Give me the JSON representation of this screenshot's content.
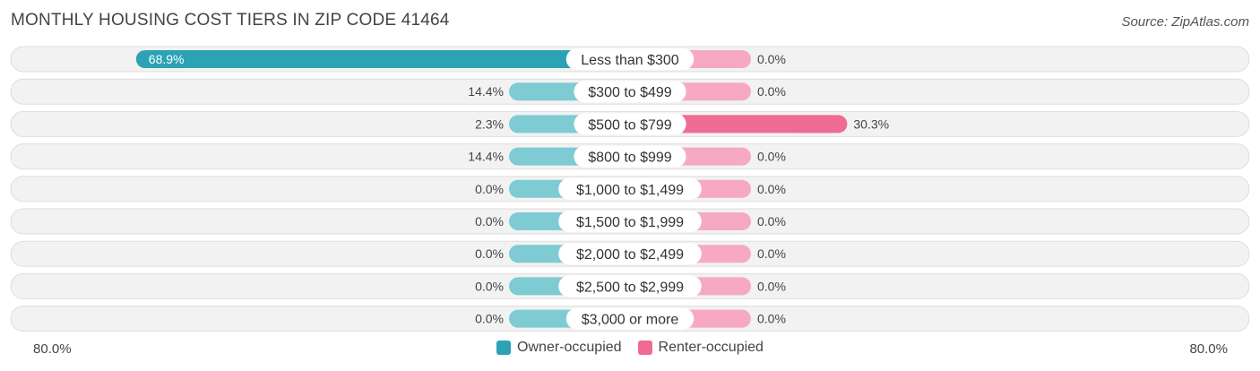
{
  "header": {
    "title": "MONTHLY HOUSING COST TIERS IN ZIP CODE 41464",
    "source": "Source: ZipAtlas.com"
  },
  "colors": {
    "owner_strong": "#2ba3b4",
    "owner_light": "#7ecbd3",
    "renter_strong": "#f06b93",
    "renter_light": "#f7a9c2",
    "row_bg": "#f2f2f2",
    "row_border": "#dedede"
  },
  "axis": {
    "left_label": "80.0%",
    "right_label": "80.0%"
  },
  "legend": {
    "owner": "Owner-occupied",
    "renter": "Renter-occupied"
  },
  "chart_data": {
    "type": "bar",
    "orientation": "horizontal-diverging",
    "xlim": [
      -80,
      80
    ],
    "categories": [
      "Less than $300",
      "$300 to $499",
      "$500 to $799",
      "$800 to $999",
      "$1,000 to $1,499",
      "$1,500 to $1,999",
      "$2,000 to $2,499",
      "$2,500 to $2,999",
      "$3,000 or more"
    ],
    "series": [
      {
        "name": "Owner-occupied",
        "values": [
          68.9,
          14.4,
          2.3,
          14.4,
          0.0,
          0.0,
          0.0,
          0.0,
          0.0
        ],
        "labels": [
          "68.9%",
          "14.4%",
          "2.3%",
          "14.4%",
          "0.0%",
          "0.0%",
          "0.0%",
          "0.0%",
          "0.0%"
        ]
      },
      {
        "name": "Renter-occupied",
        "values": [
          0.0,
          0.0,
          30.3,
          0.0,
          0.0,
          0.0,
          0.0,
          0.0,
          0.0
        ],
        "labels": [
          "0.0%",
          "0.0%",
          "30.3%",
          "0.0%",
          "0.0%",
          "0.0%",
          "0.0%",
          "0.0%",
          "0.0%"
        ]
      }
    ]
  }
}
